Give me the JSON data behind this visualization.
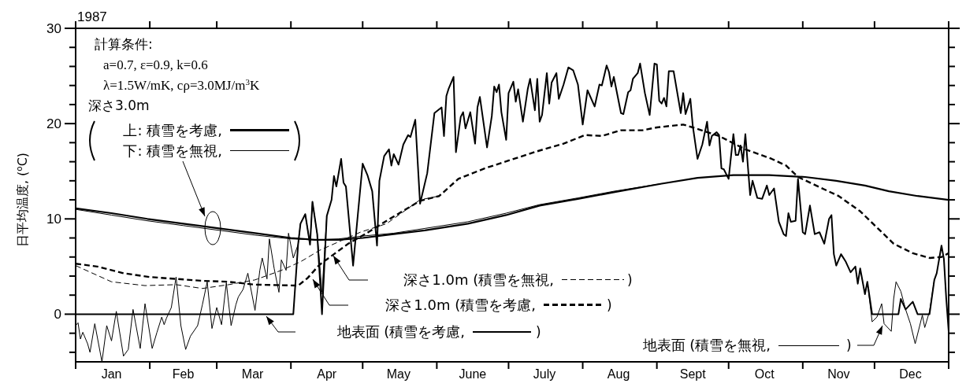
{
  "chart_data": {
    "type": "line",
    "title": "1987",
    "ylabel": "日平均温度, ($^{o}$C)",
    "annotations": [
      "計算条件:",
      "a=0.7, ε=0.9, k=0.6",
      "λ=1.5W/mK, cρ=3.0MJ/m$^{3}$K",
      "深さ3.0m",
      ")",
      ")",
      ")",
      ")"
    ],
    "xlim": [
      "1987-01-01",
      "1988-01-01"
    ],
    "xticks": [
      {
        "value": "1987-01-01",
        "label": null
      },
      {
        "value": "1987-01-16",
        "label": "Jan"
      },
      {
        "value": "1987-02-01",
        "label": null
      },
      {
        "value": "1987-02-15",
        "label": "Feb"
      },
      {
        "value": "1987-03-01",
        "label": null
      },
      {
        "value": "1987-03-16",
        "label": "Mar"
      },
      {
        "value": "1987-04-01",
        "label": null
      },
      {
        "value": "1987-04-16",
        "label": "Apr"
      },
      {
        "value": "1987-05-01",
        "label": null
      },
      {
        "value": "1987-05-16",
        "label": "May"
      },
      {
        "value": "1987-06-01",
        "label": null
      },
      {
        "value": "1987-06-16",
        "label": "June"
      },
      {
        "value": "1987-07-01",
        "label": null
      },
      {
        "value": "1987-07-16",
        "label": "July"
      },
      {
        "value": "1987-08-01",
        "label": null
      },
      {
        "value": "1987-08-16",
        "label": "Aug"
      },
      {
        "value": "1987-09-01",
        "label": null
      },
      {
        "value": "1987-09-16",
        "label": "Sept"
      },
      {
        "value": "1987-10-01",
        "label": null
      },
      {
        "value": "1987-10-16",
        "label": "Oct"
      },
      {
        "value": "1987-11-01",
        "label": null
      },
      {
        "value": "1987-11-16",
        "label": "Nov"
      },
      {
        "value": "1987-12-01",
        "label": null
      },
      {
        "value": "1987-12-16",
        "label": "Dec"
      },
      {
        "value": "1988-01-01",
        "label": null
      }
    ],
    "legend": "bottom",
    "ylim": [
      -5,
      30
    ],
    "yticks": [
      {
        "value": -4,
        "label": null
      },
      {
        "value": -2,
        "label": null
      },
      0,
      {
        "value": 2,
        "label": null
      },
      {
        "value": 4,
        "label": null
      },
      {
        "value": 6,
        "label": null
      },
      {
        "value": 8,
        "label": null
      },
      10,
      {
        "value": 12,
        "label": null
      },
      {
        "value": 14,
        "label": null
      },
      {
        "value": 16,
        "label": null
      },
      {
        "value": 18,
        "label": null
      },
      20,
      {
        "value": 22,
        "label": null
      },
      {
        "value": 24,
        "label": null
      },
      {
        "value": 26,
        "label": null
      },
      {
        "value": 28,
        "label": null
      },
      30
    ],
    "series": [
      {
        "name": "上: 積雪を考慮,",
        "color": "#000000",
        "line_style": "solid",
        "x": [
          "1987-01-01",
          "1987-01-16",
          "1987-01-31",
          "1987-02-15",
          "1987-03-02",
          "1987-03-17",
          "1987-04-01",
          "1987-04-11",
          "1987-04-21",
          "1987-05-01",
          "1987-05-14",
          "1987-05-27",
          "1987-06-14",
          "1987-06-30",
          "1987-07-14",
          "1987-07-30",
          "1987-08-14",
          "1987-09-03",
          "1987-09-18",
          "1987-10-03",
          "1987-10-18",
          "1987-11-02",
          "1987-11-15",
          "1987-11-27",
          "1987-12-07",
          "1987-12-19",
          "1988-01-01"
        ],
        "values": [
          11.1,
          10.6,
          10.0,
          9.5,
          9.0,
          8.5,
          8.0,
          7.8,
          7.8,
          8.0,
          8.4,
          8.8,
          9.5,
          10.4,
          11.4,
          12.1,
          12.8,
          13.7,
          14.3,
          14.6,
          14.6,
          14.4,
          14.0,
          13.5,
          12.9,
          12.4,
          12.0
        ]
      },
      {
        "name": "下: 積雪を無視,",
        "color": "#000000",
        "line_style": "solid",
        "x": [
          "1987-01-01",
          "1987-01-16",
          "1987-01-31",
          "1987-02-15",
          "1987-03-02",
          "1987-03-17",
          "1987-04-01",
          "1987-04-11",
          "1987-04-21",
          "1987-05-01",
          "1987-05-14",
          "1987-05-27",
          "1987-06-14",
          "1987-06-30",
          "1987-07-14",
          "1987-07-30",
          "1987-08-14",
          "1987-09-03"
        ],
        "values": [
          11.0,
          10.4,
          9.8,
          9.3,
          8.8,
          8.3,
          7.9,
          7.8,
          7.9,
          8.2,
          8.5,
          9.0,
          9.7,
          10.6,
          11.5,
          12.2,
          12.9,
          13.7
        ]
      },
      {
        "name": "深さ1.0m (積雪を考慮,",
        "color": "#000000",
        "line_style": "dashed",
        "x": [
          "1987-01-01",
          "1987-01-10",
          "1987-01-21",
          "1987-02-01",
          "1987-02-12",
          "1987-02-23",
          "1987-03-06",
          "1987-03-17",
          "1987-04-04",
          "1987-04-08",
          "1987-04-13",
          "1987-04-19",
          "1987-04-25",
          "1987-05-02",
          "1987-05-11",
          "1987-05-25",
          "1987-06-02",
          "1987-06-10",
          "1987-06-21",
          "1987-07-02",
          "1987-07-13",
          "1987-07-24",
          "1987-08-02",
          "1987-08-09",
          "1987-08-17",
          "1987-08-26",
          "1987-09-01",
          "1987-09-12",
          "1987-09-16",
          "1987-09-27",
          "1987-10-08",
          "1987-10-19",
          "1987-10-25",
          "1987-10-30",
          "1987-11-10",
          "1987-11-16",
          "1987-11-25",
          "1987-12-09",
          "1987-12-17",
          "1987-12-24",
          "1987-12-29",
          "1988-01-01"
        ],
        "values": [
          5.3,
          5.0,
          4.3,
          3.9,
          3.7,
          3.5,
          3.4,
          3.1,
          3.0,
          3.8,
          5.2,
          6.3,
          7.4,
          8.4,
          9.8,
          11.9,
          12.4,
          14.2,
          15.3,
          16.2,
          17.1,
          17.9,
          18.8,
          18.7,
          19.3,
          19.3,
          19.6,
          19.9,
          19.6,
          18.7,
          17.3,
          16.3,
          15.6,
          14.4,
          13.1,
          12.4,
          10.8,
          7.4,
          6.4,
          5.9,
          6.0,
          6.4
        ]
      },
      {
        "name": "深さ1.0m (積雪を無視,",
        "color": "#000000",
        "line_style": "dashed",
        "x": [
          "1987-01-01",
          "1987-01-16",
          "1987-01-30",
          "1987-02-12",
          "1987-02-23",
          "1987-03-06",
          "1987-03-17",
          "1987-03-28",
          "1987-04-05",
          "1987-04-13",
          "1987-04-21",
          "1987-04-30",
          "1987-05-11",
          "1987-05-25",
          "1987-06-02"
        ],
        "values": [
          5.1,
          3.4,
          3.0,
          3.1,
          2.7,
          3.1,
          3.6,
          4.6,
          5.5,
          6.7,
          7.6,
          8.6,
          9.5,
          12.0,
          12.4
        ]
      },
      {
        "name": "地表面 (積雪を考慮,",
        "color": "#000000",
        "line_style": "solid",
        "x": [
          "1987-01-01",
          "1987-04-02",
          "1987-04-04",
          "1987-04-05",
          "1987-04-07",
          "1987-04-09",
          "1987-04-10",
          "1987-04-12",
          "1987-04-14",
          "1987-04-16",
          "1987-04-18",
          "1987-04-19",
          "1987-04-20",
          "1987-04-22",
          "1987-04-23",
          "1987-04-24",
          "1987-04-27",
          "1987-04-29",
          "1987-05-01",
          "1987-05-03",
          "1987-05-05",
          "1987-05-07",
          "1987-05-08",
          "1987-05-10",
          "1987-05-12",
          "1987-05-13",
          "1987-05-14",
          "1987-05-16",
          "1987-05-18",
          "1987-05-20",
          "1987-05-21",
          "1987-05-23",
          "1987-05-25",
          "1987-05-28",
          "1987-05-31",
          "1987-06-03",
          "1987-06-04",
          "1987-06-05",
          "1987-06-06",
          "1987-06-08",
          "1987-06-09",
          "1987-06-11",
          "1987-06-12",
          "1987-06-13",
          "1987-06-15",
          "1987-06-17",
          "1987-06-18",
          "1987-06-19",
          "1987-06-22",
          "1987-06-24",
          "1987-06-25",
          "1987-06-26",
          "1987-06-27",
          "1987-06-28",
          "1987-06-30",
          "1987-07-01",
          "1987-07-03",
          "1987-07-04",
          "1987-07-05",
          "1987-07-07",
          "1987-07-09",
          "1987-07-10",
          "1987-07-12",
          "1987-07-13",
          "1987-07-14",
          "1987-07-15",
          "1987-07-17",
          "1987-07-18",
          "1987-07-19",
          "1987-07-21",
          "1987-07-22",
          "1987-07-24",
          "1987-07-26",
          "1987-07-28",
          "1987-07-30",
          "1987-08-01",
          "1987-08-03",
          "1987-08-06",
          "1987-08-08",
          "1987-08-09",
          "1987-08-11",
          "1987-08-12",
          "1987-08-13",
          "1987-08-14",
          "1987-08-17",
          "1987-08-18",
          "1987-08-20",
          "1987-08-21",
          "1987-08-22",
          "1987-08-24",
          "1987-08-25",
          "1987-08-27",
          "1987-08-29",
          "1987-08-31",
          "1987-09-01",
          "1987-09-02",
          "1987-09-03",
          "1987-09-04",
          "1987-09-05",
          "1987-09-06",
          "1987-09-08",
          "1987-09-11",
          "1987-09-12",
          "1987-09-13",
          "1987-09-15",
          "1987-09-16",
          "1987-09-18",
          "1987-09-20",
          "1987-09-22",
          "1987-09-23",
          "1987-09-24",
          "1987-09-26",
          "1987-09-27",
          "1987-09-28",
          "1987-09-29",
          "1987-10-01",
          "1987-10-03",
          "1987-10-04",
          "1987-10-05",
          "1987-10-06",
          "1987-10-07",
          "1987-10-08",
          "1987-10-10",
          "1987-10-11",
          "1987-10-13",
          "1987-10-15",
          "1987-10-17",
          "1987-10-18",
          "1987-10-20",
          "1987-10-22",
          "1987-10-24",
          "1987-10-25",
          "1987-10-26",
          "1987-10-27",
          "1987-10-29",
          "1987-10-30",
          "1987-11-01",
          "1987-11-02",
          "1987-11-04",
          "1987-11-06",
          "1987-11-08",
          "1987-11-10",
          "1987-11-12",
          "1987-11-13",
          "1987-11-14",
          "1987-11-15",
          "1987-11-17",
          "1987-11-19",
          "1987-11-21",
          "1987-11-23",
          "1987-11-24",
          "1987-11-25",
          "1987-11-27",
          "1987-11-28",
          "1987-11-30",
          "1987-12-11",
          "1987-12-12",
          "1987-12-14",
          "1987-12-17",
          "1987-12-19",
          "1987-12-24",
          "1987-12-26",
          "1987-12-27",
          "1987-12-29",
          "1987-12-30",
          "1987-12-31",
          "1988-01-01"
        ],
        "values": [
          0,
          0,
          7.3,
          9.5,
          10.5,
          7.3,
          11.8,
          8.4,
          0,
          10.3,
          12,
          14.5,
          13.4,
          16.3,
          13.8,
          13.4,
          5.1,
          10.5,
          15.8,
          14.6,
          12.9,
          7.2,
          14,
          16.6,
          17.3,
          15.6,
          16.8,
          15.7,
          17.8,
          18.8,
          18.6,
          20.4,
          11.6,
          14.8,
          21.1,
          21.7,
          18.7,
          22.9,
          23.7,
          24.9,
          17,
          20.7,
          21.2,
          19.5,
          21.2,
          17.9,
          21.7,
          22.8,
          17.5,
          20.8,
          23.9,
          23.3,
          24.1,
          21.2,
          18.3,
          23.2,
          24.4,
          22.3,
          23.6,
          20.2,
          23.6,
          24.7,
          21.4,
          24.7,
          20.2,
          20.9,
          25.3,
          22.1,
          24.3,
          25.3,
          22.6,
          24.1,
          25.9,
          25.6,
          24.1,
          19.9,
          23.5,
          21.8,
          24.1,
          24,
          26.1,
          25.4,
          23.9,
          24.9,
          21.1,
          21,
          23.3,
          23.5,
          24.7,
          25.3,
          26.3,
          23.2,
          20.9,
          26.3,
          26.2,
          22.4,
          22.1,
          22.7,
          21.8,
          25.5,
          25.5,
          21.1,
          23.2,
          21,
          22.6,
          19.8,
          16.3,
          17.8,
          20.2,
          17.7,
          18.7,
          19.1,
          18.8,
          15.3,
          15.2,
          14.2,
          18.9,
          16.7,
          16.7,
          17.7,
          16,
          18.9,
          12.5,
          14,
          12.2,
          12.1,
          13.5,
          12.5,
          13.2,
          9.7,
          8.4,
          8.2,
          10.6,
          9.7,
          9.8,
          14.2,
          8.6,
          8.4,
          11.4,
          8.4,
          8.6,
          7.4,
          10,
          10.4,
          6.3,
          5.1,
          6.3,
          5.5,
          4.4,
          5,
          3.2,
          4.8,
          2.1,
          3.4,
          0,
          0,
          1.6,
          0.5,
          1.3,
          0,
          0,
          3.6,
          4.3,
          7.2,
          5.8,
          1.6,
          -1.8
        ]
      },
      {
        "name": "地表面 (積雪を無視,",
        "color": "#000000",
        "line_style": "solid",
        "x": [
          "1987-01-01",
          "1987-01-02",
          "1987-01-03",
          "1987-01-04",
          "1987-01-06",
          "1987-01-07",
          "1987-01-09",
          "1987-01-12",
          "1987-01-14",
          "1987-01-16",
          "1987-01-18",
          "1987-01-21",
          "1987-01-23",
          "1987-01-25",
          "1987-01-28",
          "1987-01-30",
          "1987-02-02",
          "1987-02-04",
          "1987-02-06",
          "1987-02-07",
          "1987-02-08",
          "1987-02-10",
          "1987-02-12",
          "1987-02-14",
          "1987-02-16",
          "1987-02-18",
          "1987-02-21",
          "1987-02-23",
          "1987-02-25",
          "1987-02-27",
          "1987-03-01",
          "1987-03-03",
          "1987-03-05",
          "1987-03-07",
          "1987-03-09",
          "1987-03-10",
          "1987-03-12",
          "1987-03-14",
          "1987-03-17",
          "1987-03-19",
          "1987-03-20",
          "1987-03-22",
          "1987-03-23",
          "1987-03-25",
          "1987-03-27",
          "1987-03-28",
          "1987-03-30",
          "1987-03-31",
          "1987-04-02",
          "1987-04-04",
          "1987-04-05",
          "1987-04-07",
          "1987-04-09",
          "1987-04-10",
          "1987-04-12",
          "1987-04-14",
          "1987-04-16",
          "1987-07-20",
          "1987-11-27",
          "1987-11-28",
          "1987-11-30",
          "1987-12-02",
          "1987-12-04",
          "1987-12-05",
          "1987-12-08",
          "1987-12-09",
          "1987-12-10",
          "1987-12-12",
          "1987-12-14",
          "1987-12-16",
          "1987-12-18",
          "1987-12-21",
          "1987-12-22",
          "1987-12-24",
          "1987-12-26"
        ],
        "values": [
          -1.2,
          -0.9,
          -2.6,
          -1.9,
          -3.1,
          -4,
          -1,
          -5,
          -1.2,
          -2.8,
          0.3,
          -4.4,
          -3.7,
          0.5,
          -3.6,
          1.1,
          -3.6,
          -1.9,
          -0.3,
          -1.1,
          -0.4,
          0.7,
          3.9,
          -1.2,
          -3.7,
          -2.3,
          -1.2,
          1,
          3.4,
          -1.5,
          0.7,
          -1.1,
          3.3,
          -1.2,
          1,
          1.8,
          2.6,
          4.3,
          0.4,
          4.6,
          5.9,
          3.7,
          7.9,
          4.8,
          2.3,
          5.7,
          4.6,
          8.5,
          5.9,
          7.3,
          9.5,
          10.5,
          7.3,
          11.8,
          8.4,
          2.3,
          10.3,
          null,
          2.1,
          3.4,
          -0.8,
          -0.3,
          1.1,
          -1,
          -1.8,
          1.6,
          3.4,
          2.4,
          0.5,
          -1,
          -3.1,
          -0.1,
          -1.4,
          0.3,
          3.6
        ]
      }
    ]
  }
}
